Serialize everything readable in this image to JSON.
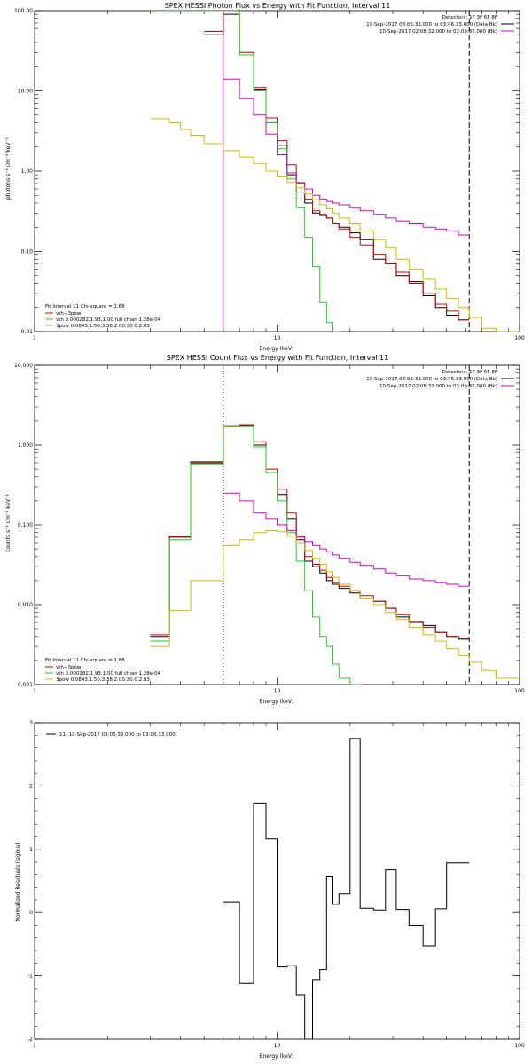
{
  "colors": {
    "black": "#000000",
    "red": "#cc0000",
    "green": "#22cc22",
    "magenta": "#d000d0",
    "yellow": "#d4b800"
  },
  "chart_data": [
    {
      "type": "line",
      "title": "SPEX HESSI Photon Flux vs Energy with Fit Function, Interval 11",
      "xlabel": "Energy (keV)",
      "ylabel": "photons s⁻¹ cm⁻² keV⁻¹",
      "xscale": "log",
      "yscale": "log",
      "xlim": [
        1,
        100
      ],
      "ylim": [
        0.01,
        100
      ],
      "xticks": [
        {
          "v": 1,
          "label": "1"
        },
        {
          "v": 10,
          "label": "10"
        },
        {
          "v": 100,
          "label": "100"
        }
      ],
      "yticks": [
        {
          "v": 0.01,
          "label": "0.01"
        },
        {
          "v": 0.1,
          "label": "0.10"
        },
        {
          "v": 1,
          "label": "1.00"
        },
        {
          "v": 10,
          "label": "10.00"
        },
        {
          "v": 100,
          "label": "100.00"
        }
      ],
      "vlines": [
        {
          "x": 6.0,
          "style": "solid",
          "color": "magenta"
        },
        {
          "x": 62,
          "style": "dashed",
          "color": "black"
        }
      ],
      "legend_top_right": {
        "header": "Detectors: 1F 3F 6F 8F",
        "entries": [
          {
            "text": "10-Sep-2017 03:05:33.000 to 03:06:33.000 (Data-Bk)",
            "color": "black"
          },
          {
            "text": "10-Sep-2017 02:08:32.000 to 02:09:32.000 (Bk)",
            "color": "magenta"
          }
        ]
      },
      "legend_bottom_left": {
        "header": "Fit Interval 11   Chi-square = 1.68",
        "entries": [
          {
            "text": "vth+3pow",
            "color": "red"
          },
          {
            "text": "vth 0.000282,1.93,1.00  full chian 1.28e-04",
            "color": "green"
          },
          {
            "text": "3pow 0.0843,1.50,3.38,2.00,30.0,2.83",
            "color": "yellow"
          }
        ]
      },
      "edges": [
        3.0,
        3.3,
        3.6,
        4.0,
        4.4,
        5.0,
        6.0,
        7.0,
        8.0,
        9.0,
        10.0,
        11.0,
        12.0,
        13.0,
        14.0,
        15.0,
        16.0,
        17.0,
        18.0,
        20.0,
        22.0,
        25.0,
        28.0,
        31.0,
        35.0,
        40.0,
        45.0,
        50.0,
        56.0,
        62.0,
        70.0,
        80.0,
        100.0
      ],
      "series": [
        {
          "key": "black",
          "color": "black",
          "values": [
            null,
            null,
            null,
            null,
            null,
            50,
            90,
            28,
            10.5,
            4.2,
            2.1,
            0.9,
            0.55,
            0.4,
            0.3,
            0.28,
            0.26,
            0.22,
            0.2,
            0.17,
            0.14,
            0.08,
            0.07,
            0.05,
            0.042,
            0.028,
            0.02,
            0.016,
            0.014,
            null,
            null,
            null
          ]
        },
        {
          "key": "red",
          "color": "red",
          "values": [
            null,
            null,
            null,
            null,
            null,
            55,
            100,
            30,
            11,
            4.6,
            2.4,
            1.2,
            0.7,
            0.45,
            0.32,
            0.29,
            0.26,
            0.22,
            0.19,
            0.15,
            0.12,
            0.09,
            0.07,
            0.055,
            0.04,
            0.03,
            0.022,
            0.018,
            0.014,
            null,
            null,
            null
          ]
        },
        {
          "key": "green",
          "color": "green",
          "values": [
            100,
            100,
            100,
            100,
            100,
            100,
            100,
            28,
            10,
            4.0,
            1.9,
            0.8,
            0.35,
            0.15,
            0.065,
            0.023,
            0.013,
            0.01,
            null,
            null,
            null,
            null,
            null,
            null,
            null,
            null,
            null,
            null,
            null,
            null,
            null,
            null
          ]
        },
        {
          "key": "magenta",
          "color": "magenta",
          "values": [
            null,
            null,
            null,
            null,
            null,
            null,
            14,
            8,
            5.0,
            2.9,
            1.6,
            0.95,
            0.72,
            0.6,
            0.5,
            0.45,
            0.42,
            0.4,
            0.38,
            0.35,
            0.32,
            0.29,
            0.26,
            0.24,
            0.22,
            0.2,
            0.19,
            0.18,
            0.16,
            null,
            null,
            null
          ]
        },
        {
          "key": "yellow",
          "color": "yellow",
          "values": [
            4.5,
            4.5,
            4.0,
            3.3,
            2.8,
            2.2,
            1.8,
            1.5,
            1.25,
            1.0,
            0.85,
            0.72,
            0.62,
            0.52,
            0.44,
            0.38,
            0.34,
            0.3,
            0.26,
            0.22,
            0.18,
            0.14,
            0.11,
            0.08,
            0.06,
            0.045,
            0.034,
            0.026,
            0.02,
            0.015,
            0.011,
            0.008
          ]
        }
      ]
    },
    {
      "type": "line",
      "title": "SPEX HESSI Count Flux vs Energy with Fit Function, Interval 11",
      "xlabel": "Energy (keV)",
      "ylabel": "counts s⁻¹ cm⁻² keV⁻¹",
      "xscale": "log",
      "yscale": "log",
      "xlim": [
        1,
        100
      ],
      "ylim": [
        0.001,
        10
      ],
      "xticks": [
        {
          "v": 1,
          "label": "1"
        },
        {
          "v": 10,
          "label": "10"
        },
        {
          "v": 100,
          "label": "100"
        }
      ],
      "yticks": [
        {
          "v": 0.001,
          "label": "0.001"
        },
        {
          "v": 0.01,
          "label": "0.010"
        },
        {
          "v": 0.1,
          "label": "0.100"
        },
        {
          "v": 1,
          "label": "1.000"
        },
        {
          "v": 10,
          "label": "10.000"
        }
      ],
      "vlines": [
        {
          "x": 6.0,
          "style": "dotted",
          "color": "black"
        },
        {
          "x": 62,
          "style": "dashed",
          "color": "black"
        }
      ],
      "legend_top_right": {
        "header": "Detectors: 1F 3F 6F 8F",
        "entries": [
          {
            "text": "10-Sep-2017 03:05:33.000 to 03:06:33.000 (Data-Bk)",
            "color": "black"
          },
          {
            "text": "10-Sep-2017 02:08:32.000 to 02:09:32.000 (Bk)",
            "color": "magenta"
          }
        ]
      },
      "legend_bottom_left": {
        "header": "Fit Interval 11   Chi-square = 1.68",
        "entries": [
          {
            "text": "vth+3pow",
            "color": "red"
          },
          {
            "text": "vth 0.000282,1.93,1.00  full chian 1.28e-04",
            "color": "green"
          },
          {
            "text": "3pow 0.0843,1.50,3.38,2.00,30.0,2.83",
            "color": "yellow"
          }
        ]
      },
      "edges": [
        3.0,
        3.3,
        3.6,
        4.0,
        4.4,
        5.0,
        6.0,
        7.0,
        8.0,
        9.0,
        10.0,
        11.0,
        12.0,
        13.0,
        14.0,
        15.0,
        16.0,
        17.0,
        18.0,
        20.0,
        22.0,
        25.0,
        28.0,
        31.0,
        35.0,
        40.0,
        45.0,
        50.0,
        56.0,
        62.0,
        70.0,
        80.0,
        100.0
      ],
      "series": [
        {
          "key": "black",
          "color": "black",
          "values": [
            0.004,
            0.004,
            0.07,
            0.07,
            0.6,
            0.6,
            1.7,
            1.75,
            1.0,
            0.45,
            0.24,
            0.12,
            0.065,
            0.035,
            0.03,
            0.025,
            0.02,
            0.018,
            0.016,
            0.014,
            0.012,
            0.011,
            0.009,
            0.007,
            0.006,
            0.0055,
            0.0045,
            0.004,
            0.0037,
            null,
            null,
            null
          ]
        },
        {
          "key": "red",
          "color": "red",
          "values": [
            0.0042,
            0.0042,
            0.072,
            0.072,
            0.62,
            0.62,
            1.75,
            1.8,
            1.1,
            0.5,
            0.28,
            0.14,
            0.07,
            0.04,
            0.032,
            0.027,
            0.022,
            0.019,
            0.017,
            0.015,
            0.013,
            0.011,
            0.009,
            0.0075,
            0.0062,
            0.0052,
            0.0045,
            0.004,
            0.0038,
            null,
            null,
            null
          ]
        },
        {
          "key": "green",
          "color": "green",
          "values": [
            0.0035,
            0.0035,
            0.065,
            0.065,
            0.58,
            0.58,
            1.7,
            1.7,
            0.95,
            0.45,
            0.2,
            0.08,
            0.035,
            0.015,
            0.007,
            0.004,
            0.003,
            0.0018,
            0.0012,
            0.001,
            null,
            null,
            null,
            null,
            null,
            null,
            null,
            null,
            null,
            null,
            null,
            null
          ]
        },
        {
          "key": "magenta",
          "color": "magenta",
          "values": [
            null,
            null,
            null,
            null,
            null,
            null,
            0.25,
            0.2,
            0.14,
            0.12,
            0.1,
            0.085,
            0.072,
            0.062,
            0.055,
            0.05,
            0.046,
            0.042,
            0.038,
            0.034,
            0.031,
            0.028,
            0.025,
            0.023,
            0.021,
            0.02,
            0.019,
            0.018,
            0.017,
            null,
            null,
            null
          ]
        },
        {
          "key": "yellow",
          "color": "yellow",
          "values": [
            0.003,
            0.003,
            0.0085,
            0.0085,
            0.02,
            0.02,
            0.055,
            0.065,
            0.08,
            0.085,
            0.082,
            0.072,
            0.06,
            0.048,
            0.038,
            0.032,
            0.026,
            0.022,
            0.018,
            0.015,
            0.012,
            0.01,
            0.008,
            0.0065,
            0.0052,
            0.0042,
            0.0035,
            0.0028,
            0.0023,
            0.0019,
            0.0015,
            0.0012
          ]
        }
      ]
    },
    {
      "type": "line",
      "title": "",
      "xlabel": "Energy (keV)",
      "ylabel": "Normalized Residuals (sigma)",
      "xscale": "log",
      "yscale": "linear",
      "xlim": [
        1,
        100
      ],
      "ylim": [
        -2,
        3
      ],
      "xticks": [
        {
          "v": 1,
          "label": "1"
        },
        {
          "v": 10,
          "label": "10"
        },
        {
          "v": 100,
          "label": "100"
        }
      ],
      "yticks": [
        {
          "v": -2,
          "label": "-2"
        },
        {
          "v": -1,
          "label": "-1"
        },
        {
          "v": 0,
          "label": "0"
        },
        {
          "v": 1,
          "label": "1"
        },
        {
          "v": 2,
          "label": "2"
        },
        {
          "v": 3,
          "label": "3"
        }
      ],
      "vlines": [],
      "legend_top_left": {
        "entries": [
          {
            "text": "11: 10-Sep-2017 03:05:33.000 to 03:06:33.000",
            "color": "black"
          }
        ]
      },
      "edges": [
        6.0,
        7.0,
        8.0,
        9.0,
        10.0,
        11.0,
        12.0,
        13.0,
        14.0,
        15.0,
        16.0,
        17.0,
        18.0,
        20.0,
        22.0,
        25.0,
        28.0,
        31.0,
        35.0,
        40.0,
        45.0,
        50.0,
        56.0,
        62.0
      ],
      "series": [
        {
          "key": "black",
          "color": "black",
          "values": [
            0.17,
            -1.12,
            1.72,
            1.17,
            -0.86,
            -0.84,
            -1.3,
            -2.0,
            -1.06,
            -0.9,
            0.57,
            0.13,
            0.3,
            2.75,
            0.07,
            0.04,
            0.68,
            0.05,
            -0.2,
            -0.53,
            0.06,
            0.79,
            0.79
          ]
        }
      ]
    }
  ]
}
